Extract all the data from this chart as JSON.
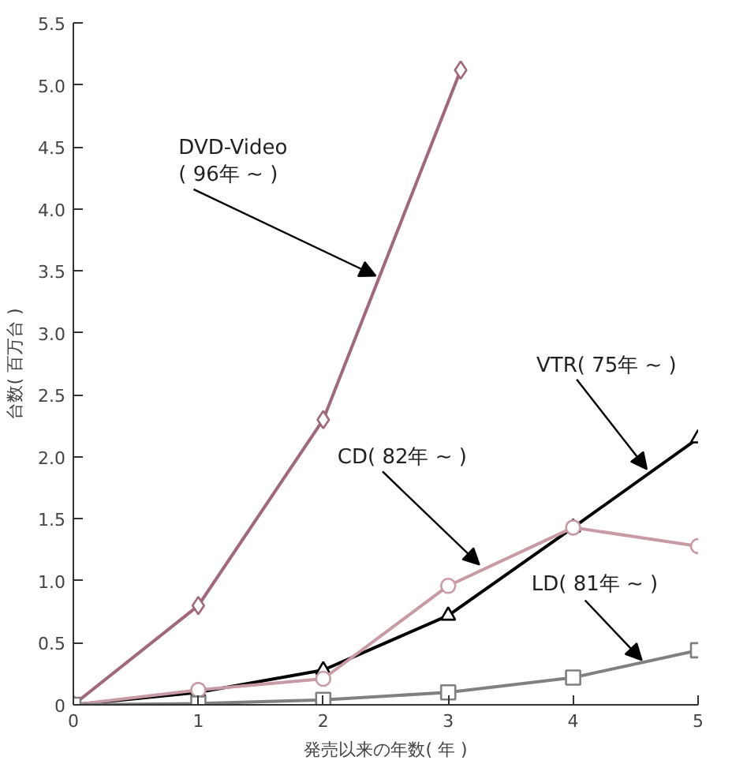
{
  "chart_data": {
    "type": "line",
    "xlabel": "発売以来の年数( 年 )",
    "ylabel": "台数( 百万台 )",
    "xlim": [
      0,
      5
    ],
    "xticks": [
      0,
      1,
      2,
      3,
      4,
      5
    ],
    "ylim": [
      0,
      5.5
    ],
    "yticks": [
      0,
      {
        "value": 0.5,
        "label": "0.5"
      },
      {
        "value": 1,
        "label": "1.0"
      },
      {
        "value": 1.5,
        "label": "1.5"
      },
      {
        "value": 2,
        "label": "2.0"
      },
      {
        "value": 2.5,
        "label": "2.5"
      },
      {
        "value": 3,
        "label": "3.0"
      },
      {
        "value": 3.5,
        "label": "3.5"
      },
      {
        "value": 4,
        "label": "4.0"
      },
      {
        "value": 4.5,
        "label": "4.5"
      },
      {
        "value": 5,
        "label": "5.0"
      },
      {
        "value": 5.5,
        "label": "5.5"
      }
    ],
    "grid": false,
    "series": [
      {
        "color": "#a06878",
        "marker": "diamond",
        "x": [
          0,
          1,
          2,
          3.1
        ],
        "values": [
          0,
          0.8,
          2.3,
          5.12
        ]
      },
      {
        "color": "#000000",
        "marker": "triangle",
        "x": [
          0,
          1,
          2,
          3,
          4,
          5
        ],
        "values": [
          0,
          0.1,
          0.28,
          0.72,
          1.43,
          2.15
        ]
      },
      {
        "color": "#c89aa4",
        "marker": "circle",
        "x": [
          0,
          1,
          2,
          3,
          4,
          5
        ],
        "values": [
          0,
          0.12,
          0.21,
          0.96,
          1.43,
          1.28
        ]
      },
      {
        "color": "#808080",
        "marker": "square",
        "x": [
          0,
          1,
          2,
          3,
          4,
          5
        ],
        "values": [
          0,
          0.01,
          0.04,
          0.1,
          0.22,
          0.44
        ]
      }
    ],
    "annotations": [
      {
        "text": "DVD-Video\n( 96年 ~ )",
        "x": 2.42,
        "y": 3.46
      },
      {
        "text": "VTR( 75年 ~ )",
        "x": 4.59,
        "y": 1.9
      },
      {
        "text": "CD( 82年 ~ )",
        "x": 3.25,
        "y": 1.13
      },
      {
        "text": "LD( 81年 ~ )",
        "x": 4.55,
        "y": 0.36
      }
    ]
  }
}
